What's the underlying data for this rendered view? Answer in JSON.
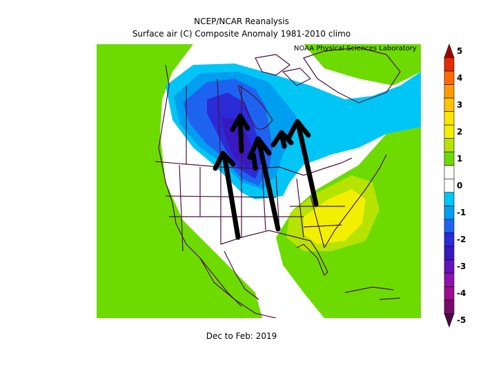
{
  "header": {
    "title": "NCEP/NCAR Reanalysis",
    "subtitle": "Surface air (C) Composite Anomaly 1981-2010 climo",
    "credit": "NOAA Physical Sciences Laboratory"
  },
  "footer": {
    "period": "Dec to Feb: 2019"
  },
  "colorbar": {
    "levels": [
      {
        "label": "5",
        "color": "#a50000"
      },
      {
        "label": "",
        "color": "#e22b00"
      },
      {
        "label": "4",
        "color": "#ff6a00"
      },
      {
        "label": "",
        "color": "#ff9b00"
      },
      {
        "label": "3",
        "color": "#ffc300"
      },
      {
        "label": "",
        "color": "#ffe600"
      },
      {
        "label": "2",
        "color": "#f2f000"
      },
      {
        "label": "",
        "color": "#b7e300"
      },
      {
        "label": "1",
        "color": "#6ddb00"
      },
      {
        "label": "",
        "color": "#ffffff"
      },
      {
        "label": "0",
        "color": "#ffffff"
      },
      {
        "label": "",
        "color": "#00c6f5"
      },
      {
        "label": "-1",
        "color": "#009ef0"
      },
      {
        "label": "",
        "color": "#1e63f0"
      },
      {
        "label": "-2",
        "color": "#2b2bd8"
      },
      {
        "label": "",
        "color": "#3a18c0"
      },
      {
        "label": "-3",
        "color": "#6414b8"
      },
      {
        "label": "",
        "color": "#8e12b0"
      },
      {
        "label": "-4",
        "color": "#9d0a90"
      },
      {
        "label": "",
        "color": "#7a0a6a"
      },
      {
        "label": "-5",
        "color": "#4a0848"
      }
    ]
  },
  "colors": {
    "green": "#6ddb00",
    "light_blue": "#00c6f5",
    "mid_blue": "#009ef0",
    "blue": "#1e63f0",
    "dark_blue": "#2b2bd8",
    "indigo": "#3a18c0",
    "yellow_green": "#b7e300",
    "yellow": "#f2f000",
    "border": "#4a0f3e",
    "arrow": "#000000"
  }
}
